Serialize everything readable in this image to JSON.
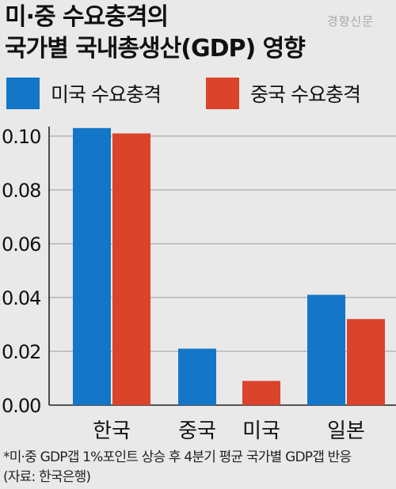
{
  "header": {
    "title_line1": "미·중 수요충격의",
    "title_line2": "국가별 국내총생산(GDP) 영향",
    "watermark": "경향신문"
  },
  "chart_data": {
    "type": "bar",
    "categories": [
      "한국",
      "중국",
      "미국",
      "일본"
    ],
    "series": [
      {
        "name": "미국 수요충격",
        "color": "#1376c6",
        "values": [
          0.103,
          0.021,
          null,
          0.041
        ]
      },
      {
        "name": "중국 수요충격",
        "color": "#d9442b",
        "values": [
          0.101,
          null,
          0.009,
          0.032
        ]
      }
    ],
    "ylim": [
      0,
      0.1
    ],
    "yticks": [
      "0.00",
      "0.02",
      "0.04",
      "0.06",
      "0.08",
      "0.10"
    ],
    "grid": true,
    "legend_position": "top"
  },
  "footnote": {
    "line1": "*미·중 GDP갭 1%포인트 상승 후 4분기 평균 국가별 GDP갭 반응",
    "line2": "(자료: 한국은행)"
  }
}
